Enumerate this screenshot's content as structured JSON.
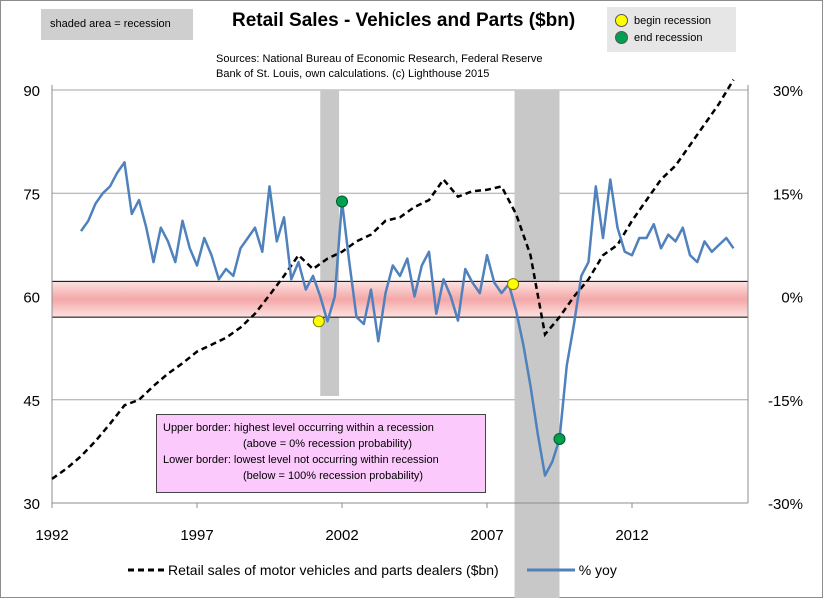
{
  "title": "Retail Sales - Vehicles and Parts ($bn)",
  "sources": {
    "line1": "Sources: National Bureau of Economic Research, Federal Reserve",
    "line2": "Bank of St. Louis, own calculations. (c) Lighthouse 2015"
  },
  "shaded_note": "shaded area = recession",
  "markers": {
    "begin_label": "begin recession",
    "end_label": "end recession",
    "begin_color": "#ffff00",
    "end_color": "#00a050"
  },
  "note": {
    "line1": "Upper border: highest level occurring within a recession",
    "line2": "(above = 0% recession probability)",
    "line3": "Lower border: lowest level not occurring within recession",
    "line4": "(below = 100% recession probability)"
  },
  "colors": {
    "sales_line": "#000000",
    "yoy_line": "#4f81bd",
    "recession_shade": "#c8c8c8",
    "band_fill": "#f4a7a7",
    "note_bg": "#fbc9fb"
  },
  "chart_data": {
    "type": "line",
    "xlim": [
      1992,
      2016
    ],
    "x_ticks": [
      "1992",
      "1997",
      "2002",
      "2007",
      "2012"
    ],
    "y_left": {
      "ticks": [
        "30",
        "45",
        "60",
        "75",
        "90"
      ],
      "range": [
        30,
        90
      ]
    },
    "y_right": {
      "ticks": [
        "-30%",
        "-15%",
        "0%",
        "15%",
        "30%"
      ],
      "range": [
        -30,
        30
      ]
    },
    "recessions": [
      [
        2001.25,
        2001.9
      ],
      [
        2007.95,
        2009.5
      ]
    ],
    "probability_band": {
      "upper": 2.2,
      "lower": -3.0,
      "units": "% yoy"
    },
    "begin_points": [
      {
        "x": 2001.2,
        "y": -3.6
      },
      {
        "x": 2007.9,
        "y": 1.8
      }
    ],
    "end_points": [
      {
        "x": 2002.0,
        "y": 13.8
      },
      {
        "x": 2009.5,
        "y": -20.7
      }
    ],
    "series": [
      {
        "name": "Retail sales of motor vehicles and parts dealers ($bn)",
        "axis": "left",
        "style": "dashed",
        "x": [
          1992.0,
          1992.5,
          1993.0,
          1993.5,
          1994.0,
          1994.5,
          1995.0,
          1995.5,
          1996.0,
          1996.5,
          1997.0,
          1997.5,
          1998.0,
          1998.5,
          1999.0,
          1999.5,
          2000.0,
          2000.5,
          2001.0,
          2001.5,
          2002.0,
          2002.5,
          2003.0,
          2003.5,
          2004.0,
          2004.5,
          2005.0,
          2005.5,
          2006.0,
          2006.5,
          2007.0,
          2007.5,
          2008.0,
          2008.5,
          2009.0,
          2009.5,
          2010.0,
          2010.5,
          2011.0,
          2011.5,
          2012.0,
          2012.5,
          2013.0,
          2013.5,
          2014.0,
          2014.5,
          2015.0,
          2015.5
        ],
        "values": [
          33.5,
          35.0,
          36.8,
          39.0,
          41.5,
          44.2,
          45.0,
          47.0,
          48.8,
          50.3,
          52.0,
          53.0,
          54.0,
          55.5,
          57.5,
          60.2,
          63.0,
          66.0,
          64.0,
          65.5,
          66.5,
          68.0,
          69.0,
          71.0,
          71.5,
          73.0,
          74.0,
          77.0,
          74.5,
          75.3,
          75.5,
          76.0,
          72.0,
          66.0,
          54.5,
          57.0,
          60.0,
          62.5,
          66.0,
          67.5,
          71.0,
          74.0,
          77.0,
          79.0,
          82.0,
          85.0,
          88.0,
          91.5
        ]
      },
      {
        "name": "% yoy",
        "axis": "right",
        "style": "solid",
        "x": [
          1993.0,
          1993.25,
          1993.5,
          1993.75,
          1994.0,
          1994.25,
          1994.5,
          1994.75,
          1995.0,
          1995.25,
          1995.5,
          1995.75,
          1996.0,
          1996.25,
          1996.5,
          1996.75,
          1997.0,
          1997.25,
          1997.5,
          1997.75,
          1998.0,
          1998.25,
          1998.5,
          1998.75,
          1999.0,
          1999.25,
          1999.5,
          1999.75,
          2000.0,
          2000.25,
          2000.5,
          2000.75,
          2001.0,
          2001.25,
          2001.5,
          2001.75,
          2002.0,
          2002.25,
          2002.5,
          2002.75,
          2003.0,
          2003.25,
          2003.5,
          2003.75,
          2004.0,
          2004.25,
          2004.5,
          2004.75,
          2005.0,
          2005.25,
          2005.5,
          2005.75,
          2006.0,
          2006.25,
          2006.5,
          2006.75,
          2007.0,
          2007.25,
          2007.5,
          2007.75,
          2008.0,
          2008.25,
          2008.5,
          2008.75,
          2009.0,
          2009.25,
          2009.5,
          2009.75,
          2010.0,
          2010.25,
          2010.5,
          2010.75,
          2011.0,
          2011.25,
          2011.5,
          2011.75,
          2012.0,
          2012.25,
          2012.5,
          2012.75,
          2013.0,
          2013.25,
          2013.5,
          2013.75,
          2014.0,
          2014.25,
          2014.5,
          2014.75,
          2015.0,
          2015.25,
          2015.5
        ],
        "values": [
          9.5,
          11.0,
          13.5,
          15.0,
          16.0,
          18.0,
          19.5,
          12.0,
          14.0,
          10.0,
          5.0,
          10.0,
          8.0,
          5.0,
          11.0,
          7.0,
          4.5,
          8.5,
          6.0,
          2.5,
          4.0,
          3.0,
          7.0,
          8.5,
          10.0,
          6.5,
          16.0,
          8.0,
          11.5,
          2.5,
          5.0,
          1.0,
          3.0,
          0.0,
          -3.6,
          0.0,
          13.8,
          5.0,
          -3.0,
          -4.0,
          1.0,
          -6.5,
          0.5,
          4.5,
          3.0,
          5.5,
          0.0,
          4.5,
          6.5,
          -2.5,
          2.5,
          0.0,
          -3.5,
          4.0,
          2.0,
          0.5,
          6.0,
          2.0,
          0.5,
          1.8,
          -2.0,
          -7.0,
          -13.0,
          -20.0,
          -26.0,
          -24.0,
          -20.7,
          -10.0,
          -4.0,
          3.0,
          5.0,
          16.0,
          8.5,
          17.0,
          10.0,
          6.5,
          6.0,
          8.5,
          8.5,
          10.5,
          7.0,
          9.0,
          8.0,
          10.0,
          6.0,
          5.0,
          8.0,
          6.5,
          7.5,
          8.5,
          7.0
        ]
      }
    ]
  }
}
